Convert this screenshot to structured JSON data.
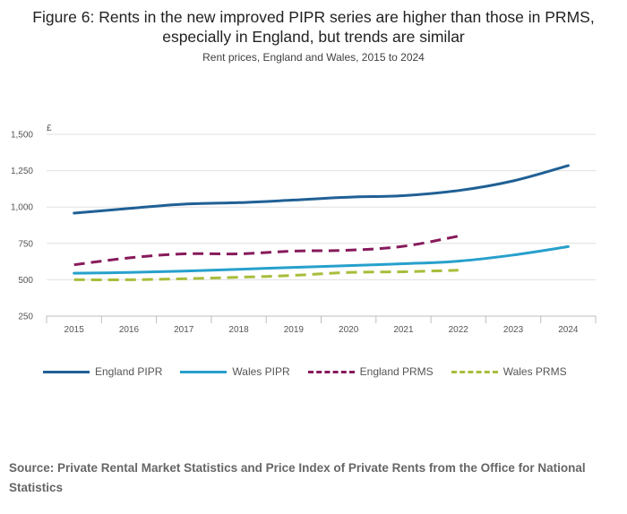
{
  "chart_data": {
    "type": "line",
    "title": "Figure 6: Rents in the new improved PIPR series are higher than those in PRMS, especially in England, but trends are similar",
    "subtitle": "Rent prices, England and Wales, 2015 to 2024",
    "ylabel": "£",
    "xlabel": "",
    "ylim": [
      250,
      1500
    ],
    "yticks": [
      250,
      500,
      750,
      1000,
      1250,
      1500
    ],
    "ytick_labels": [
      "250",
      "500",
      "750",
      "1,000",
      "1,250",
      "1,500"
    ],
    "categories": [
      "2015",
      "2016",
      "2017",
      "2018",
      "2019",
      "2020",
      "2021",
      "2022",
      "2023",
      "2024"
    ],
    "grid": true,
    "legend_position": "bottom",
    "series": [
      {
        "name": "England PIPR",
        "color": "#206095",
        "dashed": false,
        "values": [
          958,
          990,
          1020,
          1030,
          1048,
          1068,
          1078,
          1113,
          1180,
          1285
        ]
      },
      {
        "name": "Wales PIPR",
        "color": "#27a0cc",
        "dashed": false,
        "values": [
          545,
          550,
          560,
          572,
          585,
          597,
          610,
          628,
          670,
          728
        ]
      },
      {
        "name": "England PRMS",
        "color": "#871a5b",
        "dashed": true,
        "values": [
          603,
          650,
          678,
          678,
          697,
          703,
          730,
          800,
          null,
          null
        ]
      },
      {
        "name": "Wales PRMS",
        "color": "#a8bd3a",
        "dashed": true,
        "values": [
          500,
          500,
          507,
          517,
          530,
          550,
          555,
          565,
          null,
          null
        ]
      }
    ]
  },
  "title": "Figure 6: Rents in the new improved PIPR series are higher than those in PRMS, especially in England, but trends are similar",
  "subtitle": "Rent prices, England and Wales, 2015 to 2024",
  "source": "Source: Private Rental Market Statistics and Price Index of Private Rents from the Office for National Statistics"
}
